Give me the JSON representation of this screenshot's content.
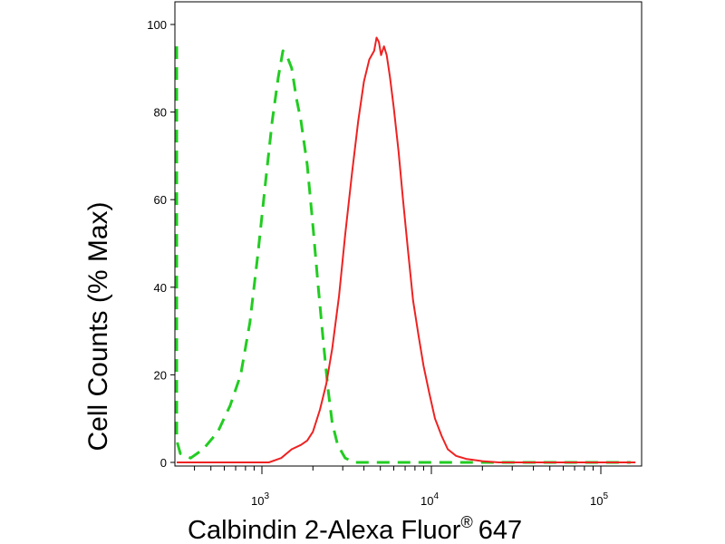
{
  "chart_data": {
    "type": "line",
    "title": "",
    "xlabel": "Calbindin 2-Alexa Fluor",
    "xlabel_superscript": "®",
    "xlabel_suffix": "647",
    "ylabel": "Cell Counts (% Max)",
    "x_scale": "log",
    "xlim": [
      290,
      160000
    ],
    "ylim": [
      0,
      104
    ],
    "grid": false,
    "legend": "none",
    "y_ticks": [
      {
        "value": 0,
        "label": "0"
      },
      {
        "value": 20,
        "label": "20"
      },
      {
        "value": 40,
        "label": "40"
      },
      {
        "value": 60,
        "label": "60"
      },
      {
        "value": 80,
        "label": "80"
      },
      {
        "value": 100,
        "label": "100"
      }
    ],
    "x_ticks": [
      {
        "value": 1000,
        "base": "10",
        "exp": "3"
      },
      {
        "value": 10000,
        "base": "10",
        "exp": "4"
      },
      {
        "value": 100000,
        "base": "10",
        "exp": "5"
      }
    ],
    "series": [
      {
        "color": "#22cc22",
        "style": "dashed",
        "points": [
          [
            300,
            95
          ],
          [
            305,
            30
          ],
          [
            310,
            5
          ],
          [
            330,
            2
          ],
          [
            380,
            1
          ],
          [
            450,
            3
          ],
          [
            550,
            7
          ],
          [
            650,
            13
          ],
          [
            750,
            20
          ],
          [
            850,
            32
          ],
          [
            950,
            48
          ],
          [
            1050,
            64
          ],
          [
            1150,
            78
          ],
          [
            1250,
            88
          ],
          [
            1330,
            94
          ],
          [
            1400,
            93
          ],
          [
            1500,
            90
          ],
          [
            1600,
            83
          ],
          [
            1700,
            78
          ],
          [
            1850,
            68
          ],
          [
            2000,
            54
          ],
          [
            2150,
            40
          ],
          [
            2300,
            28
          ],
          [
            2450,
            17
          ],
          [
            2600,
            9
          ],
          [
            2800,
            4
          ],
          [
            3100,
            1
          ],
          [
            3500,
            0
          ],
          [
            5000,
            0
          ],
          [
            8000,
            0
          ],
          [
            150000,
            0
          ]
        ]
      },
      {
        "color": "#ee2222",
        "style": "solid",
        "points": [
          [
            290,
            0
          ],
          [
            800,
            0
          ],
          [
            1100,
            0
          ],
          [
            1300,
            1
          ],
          [
            1500,
            3
          ],
          [
            1700,
            4
          ],
          [
            1850,
            5
          ],
          [
            2000,
            7
          ],
          [
            2200,
            12
          ],
          [
            2400,
            18
          ],
          [
            2600,
            26
          ],
          [
            2850,
            38
          ],
          [
            3100,
            52
          ],
          [
            3400,
            66
          ],
          [
            3700,
            78
          ],
          [
            4000,
            87
          ],
          [
            4300,
            92
          ],
          [
            4600,
            94
          ],
          [
            4750,
            97
          ],
          [
            4900,
            96
          ],
          [
            5050,
            93
          ],
          [
            5250,
            95
          ],
          [
            5450,
            93
          ],
          [
            5700,
            88
          ],
          [
            6000,
            81
          ],
          [
            6400,
            71
          ],
          [
            6800,
            60
          ],
          [
            7300,
            48
          ],
          [
            7800,
            37
          ],
          [
            8400,
            29
          ],
          [
            9000,
            22
          ],
          [
            9700,
            16
          ],
          [
            10500,
            10
          ],
          [
            11500,
            6
          ],
          [
            12500,
            3
          ],
          [
            14000,
            1.5
          ],
          [
            16000,
            0.8
          ],
          [
            20000,
            0.3
          ],
          [
            25000,
            0
          ],
          [
            160000,
            0
          ]
        ]
      }
    ]
  }
}
